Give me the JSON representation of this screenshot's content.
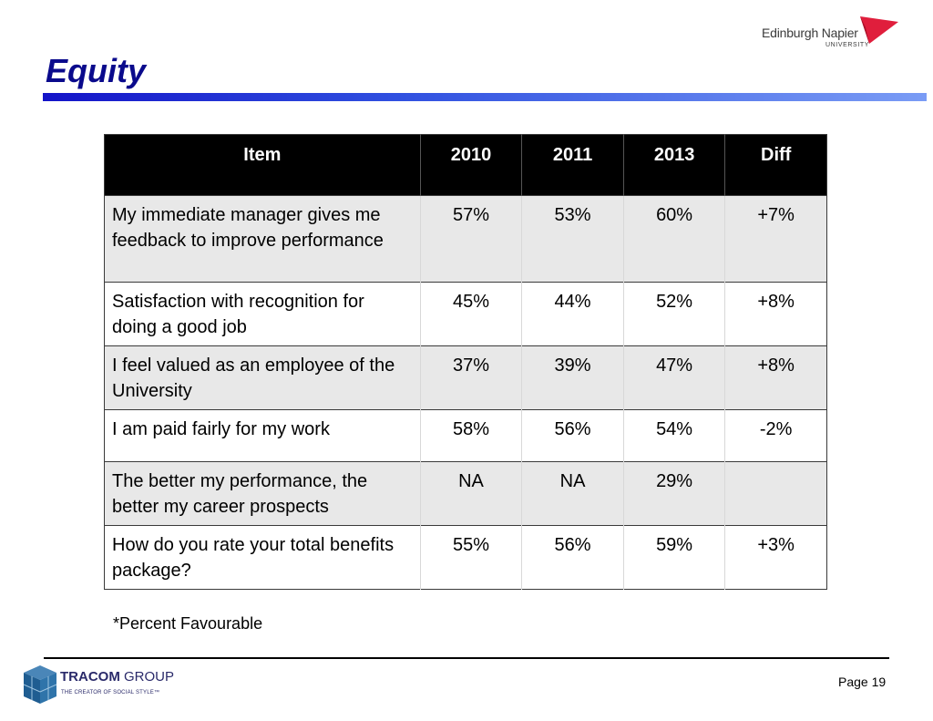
{
  "header": {
    "title": "Equity",
    "logo": {
      "name": "Edinburgh Napier",
      "sub": "UNIVERSITY",
      "color": "#e01e3c"
    }
  },
  "table": {
    "columns": [
      "Item",
      "2010",
      "2011",
      "2013",
      "Diff"
    ],
    "rows": [
      {
        "item": "My immediate manager gives me feedback to improve performance",
        "y2010": "57%",
        "y2011": "53%",
        "y2013": "60%",
        "diff": "+7%"
      },
      {
        "item": "Satisfaction with recognition for doing a good job",
        "y2010": "45%",
        "y2011": "44%",
        "y2013": "52%",
        "diff": "+8%"
      },
      {
        "item": "I feel valued as an employee of the University",
        "y2010": "37%",
        "y2011": "39%",
        "y2013": "47%",
        "diff": "+8%"
      },
      {
        "item": "I am paid fairly for my work",
        "y2010": "58%",
        "y2011": "56%",
        "y2013": "54%",
        "diff": "-2%"
      },
      {
        "item": "The better my performance, the better my career prospects",
        "y2010": "NA",
        "y2011": "NA",
        "y2013": "29%",
        "diff": ""
      },
      {
        "item": "How do you rate your total benefits package?",
        "y2010": "55%",
        "y2011": "56%",
        "y2013": "59%",
        "diff": "+3%"
      }
    ]
  },
  "note": "*Percent Favourable",
  "footer": {
    "brand": "TRACOM",
    "brand_suffix": "GROUP",
    "tagline": "THE CREATOR OF SOCIAL STYLE™",
    "page": "Page 19"
  }
}
